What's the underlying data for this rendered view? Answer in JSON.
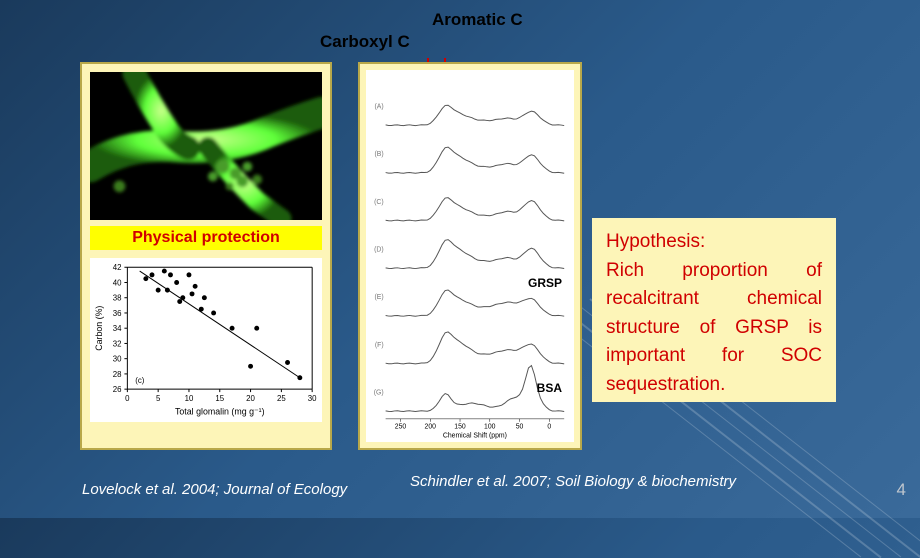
{
  "labels": {
    "carboxyl": "Carboxyl C",
    "aromatic": "Aromatic C",
    "physical_protection": "Physical protection",
    "grsp": "GRSP",
    "bsa": "BSA"
  },
  "hypothesis": {
    "title": "Hypothesis:",
    "body": "Rich proportion of recalcitrant chemical structure of GRSP is important for SOC sequestration."
  },
  "citations": {
    "left": "Lovelock et al. 2004; Journal of Ecology",
    "right": "Schindler et al. 2007; Soil Biology & biochemistry"
  },
  "page_number": "4",
  "scatter": {
    "type": "scatter",
    "xlabel": "Total glomalin (mg g⁻¹)",
    "ylabel": "Carbon (%)",
    "xlim": [
      0,
      30
    ],
    "xtick_step": 5,
    "ylim": [
      26,
      42
    ],
    "ytick_step": 2,
    "marker_color": "#000000",
    "line_color": "#000000",
    "background_color": "#ffffff",
    "axis_fontsize": 8,
    "label_fontsize": 9,
    "panel_tag": "(c)",
    "points": [
      [
        3,
        40.5
      ],
      [
        4,
        41
      ],
      [
        5,
        39
      ],
      [
        6,
        41.5
      ],
      [
        6.5,
        39
      ],
      [
        7,
        41
      ],
      [
        8,
        40
      ],
      [
        8.5,
        37.5
      ],
      [
        9,
        38
      ],
      [
        10,
        41
      ],
      [
        10.5,
        38.5
      ],
      [
        11,
        39.5
      ],
      [
        12,
        36.5
      ],
      [
        12.5,
        38
      ],
      [
        14,
        36
      ],
      [
        17,
        34
      ],
      [
        20,
        29
      ],
      [
        21,
        34
      ],
      [
        26,
        29.5
      ],
      [
        28,
        27.5
      ]
    ],
    "fit_line": {
      "x1": 2,
      "y1": 41.5,
      "x2": 28,
      "y2": 27.5
    }
  },
  "spectra": {
    "type": "line",
    "xlabel": "Chemical Shift (ppm)",
    "xlim": [
      -25,
      275
    ],
    "xtick_step": 50,
    "x_reversed": true,
    "line_color": "#555555",
    "background_color": "#ffffff",
    "axis_fontsize": 7,
    "trace_labels": [
      "(A)",
      "(B)",
      "(C)",
      "(D)",
      "(E)",
      "(F)",
      "(G)"
    ],
    "peak_carboxyl_ppm": 175,
    "peak_aromatic_ppm": 150,
    "bsa_peak_ppm": 32,
    "trace_count": 7
  },
  "colors": {
    "slide_bg_start": "#1a3a5c",
    "slide_bg_end": "#3a6a9a",
    "panel_bg": "#fdf5b8",
    "panel_border": "#b8a84a",
    "highlight_bg": "#ffff00",
    "accent_red": "#d00000",
    "text_white": "#ffffff",
    "text_black": "#000000",
    "fluorescent_green": "#5fff3a",
    "page_num_color": "#bfc6ce"
  },
  "typography": {
    "heading_fontsize": 17,
    "body_fontsize": 19,
    "citation_fontsize": 15,
    "font_family": "Helvetica"
  }
}
